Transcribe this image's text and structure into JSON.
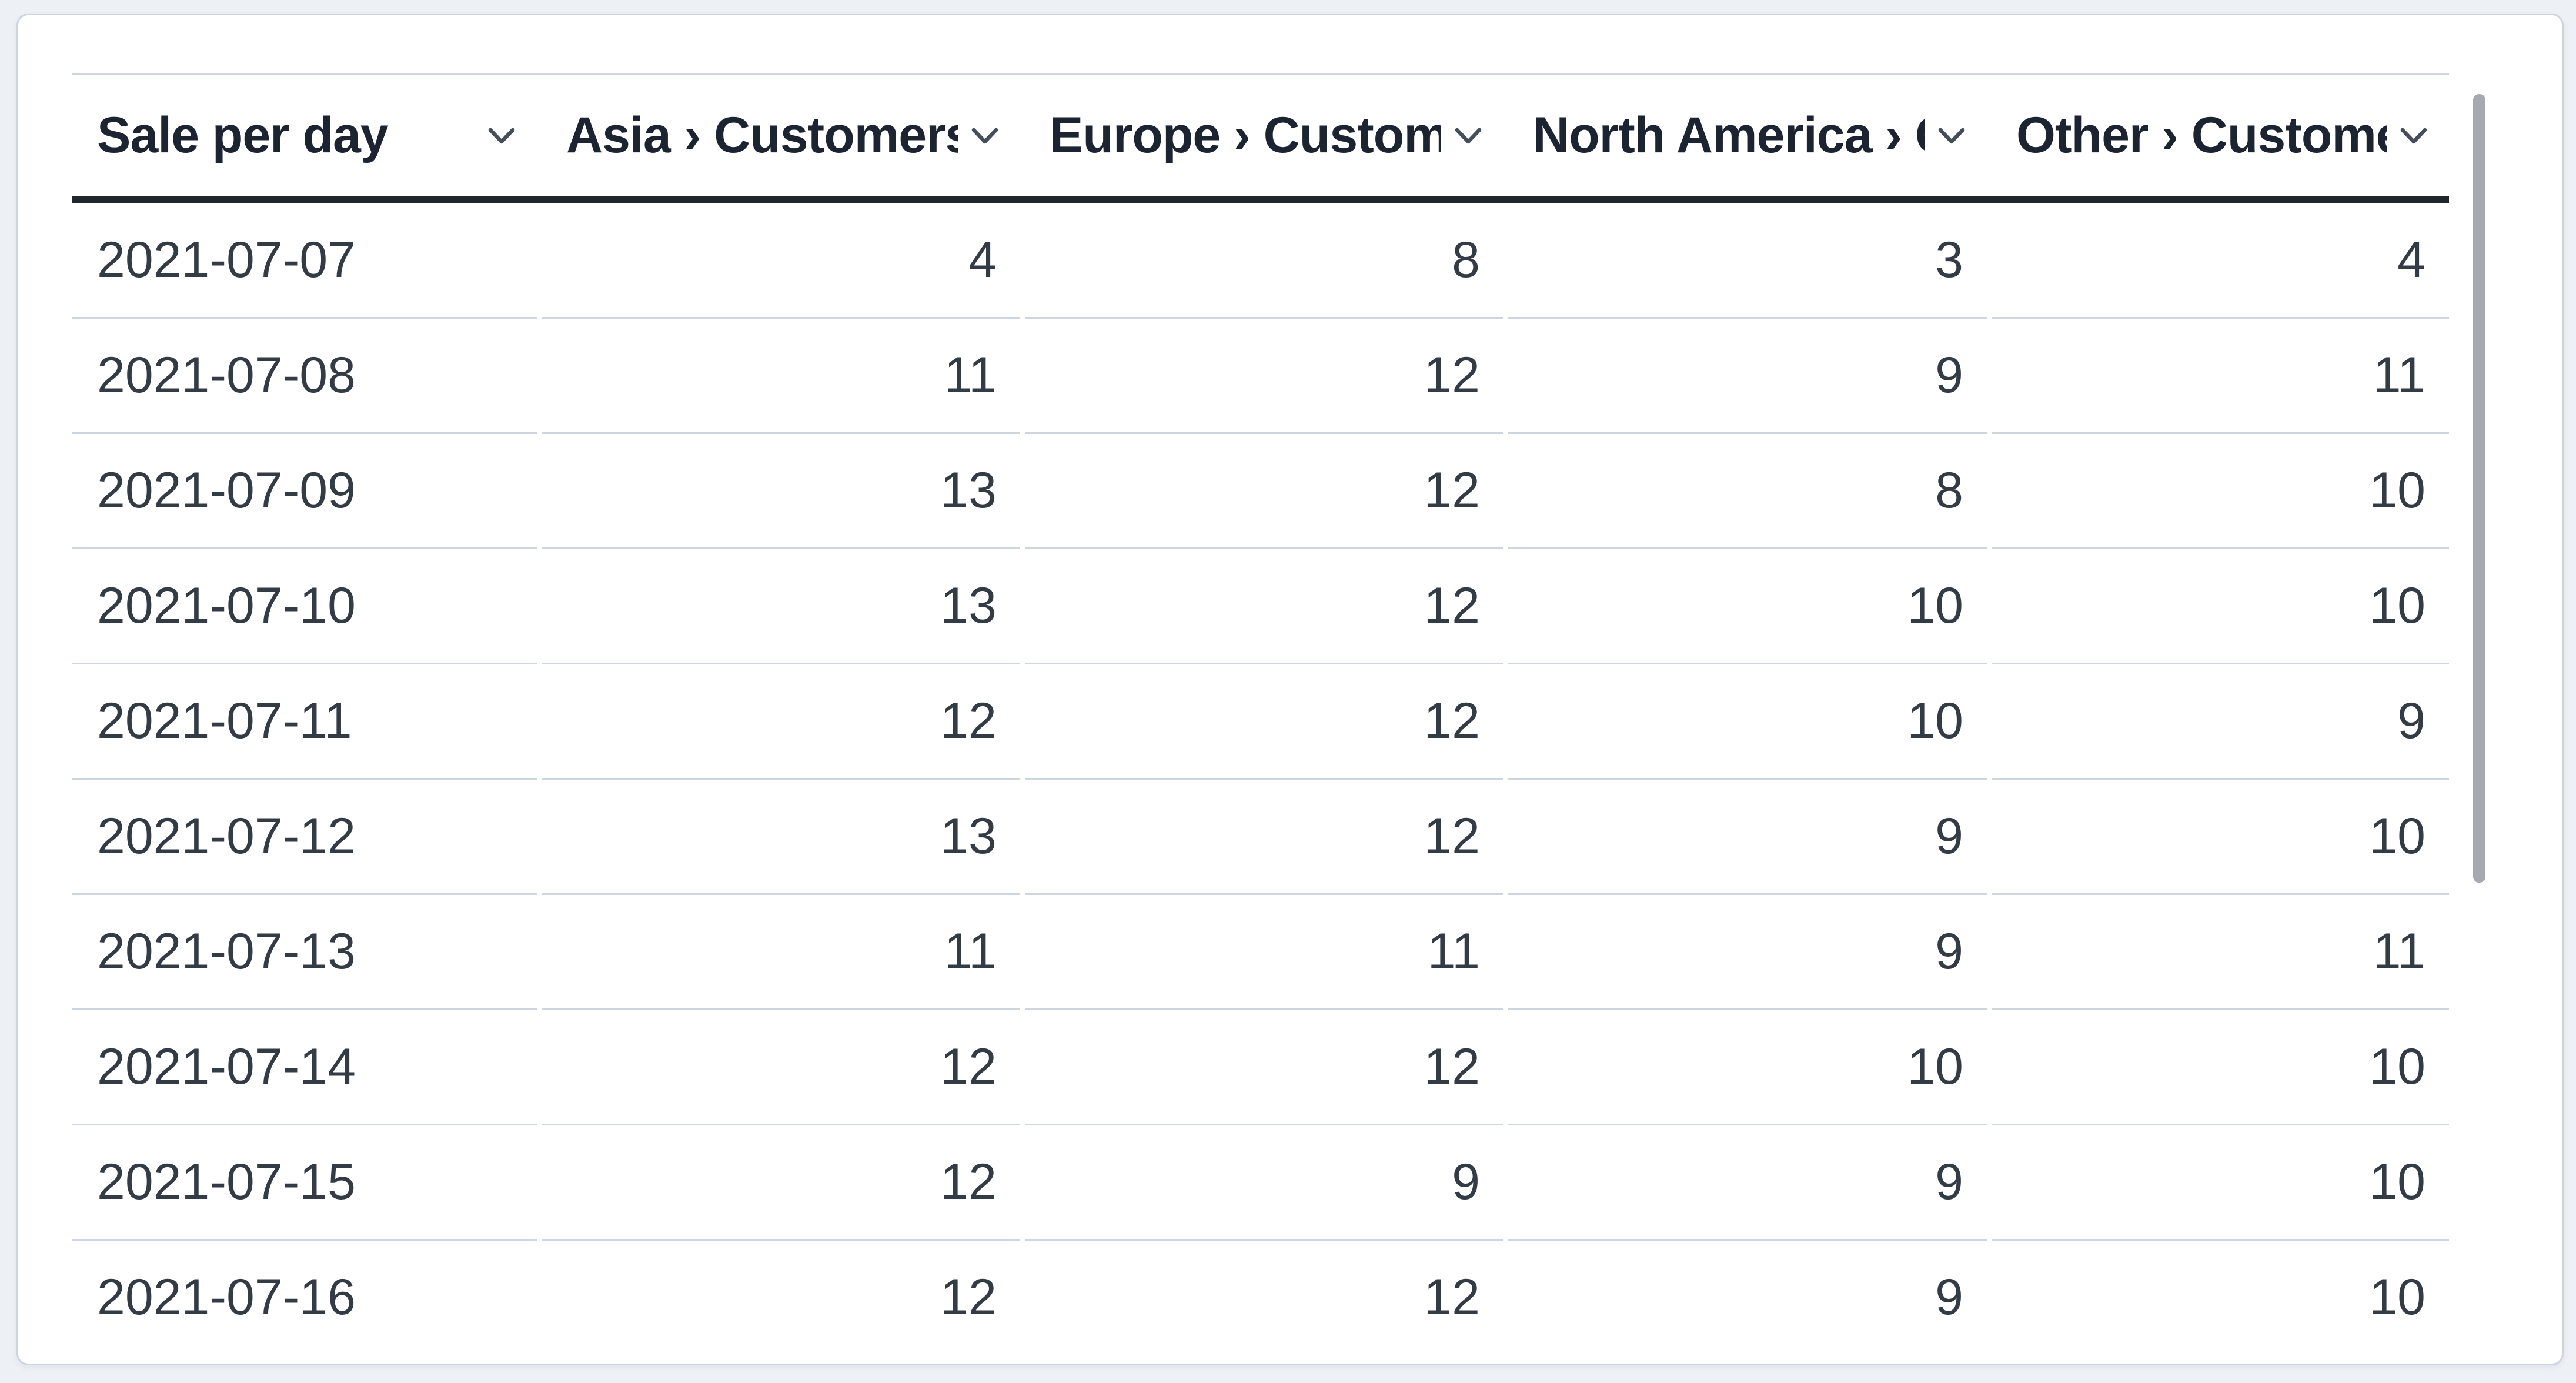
{
  "widget": {
    "type": "table-visualization"
  },
  "table": {
    "columns": [
      {
        "label": "Sale per day",
        "align": "left"
      },
      {
        "label": "Asia › Customers",
        "align": "right"
      },
      {
        "label": "Europe › Customers",
        "align": "right"
      },
      {
        "label": "North America › Customers",
        "align": "right"
      },
      {
        "label": "Other › Customers",
        "align": "right"
      }
    ],
    "rows": [
      [
        "2021-07-07",
        "4",
        "8",
        "3",
        "4"
      ],
      [
        "2021-07-08",
        "11",
        "12",
        "9",
        "11"
      ],
      [
        "2021-07-09",
        "13",
        "12",
        "8",
        "10"
      ],
      [
        "2021-07-10",
        "13",
        "12",
        "10",
        "10"
      ],
      [
        "2021-07-11",
        "12",
        "12",
        "10",
        "9"
      ],
      [
        "2021-07-12",
        "13",
        "12",
        "9",
        "10"
      ],
      [
        "2021-07-13",
        "11",
        "11",
        "9",
        "11"
      ],
      [
        "2021-07-14",
        "12",
        "12",
        "10",
        "10"
      ],
      [
        "2021-07-15",
        "12",
        "9",
        "9",
        "10"
      ],
      [
        "2021-07-16",
        "12",
        "12",
        "9",
        "10"
      ]
    ]
  },
  "chart_data": {
    "type": "table",
    "title": "Sale per day",
    "categories": [
      "2021-07-07",
      "2021-07-08",
      "2021-07-09",
      "2021-07-10",
      "2021-07-11",
      "2021-07-12",
      "2021-07-13",
      "2021-07-14",
      "2021-07-15",
      "2021-07-16"
    ],
    "series": [
      {
        "name": "Asia › Customers",
        "values": [
          4,
          11,
          13,
          13,
          12,
          13,
          11,
          12,
          12,
          12
        ]
      },
      {
        "name": "Europe › Customers",
        "values": [
          8,
          12,
          12,
          12,
          12,
          12,
          11,
          12,
          9,
          12
        ]
      },
      {
        "name": "North America › Customers",
        "values": [
          3,
          9,
          8,
          10,
          10,
          9,
          9,
          10,
          9,
          9
        ]
      },
      {
        "name": "Other › Customers",
        "values": [
          4,
          11,
          10,
          10,
          9,
          10,
          11,
          10,
          10,
          10
        ]
      }
    ]
  },
  "icons": {
    "sort_chevron": "chevron-down"
  },
  "colors": {
    "page_background": "#edf0f5",
    "card_background": "#ffffff",
    "card_border": "#cbd5e1",
    "header_text": "#1b2430",
    "body_text": "#333b45",
    "header_underline": "#22262d",
    "row_separator": "#cdd6e0",
    "chevron": "#454f5b",
    "scrollbar_thumb": "#a6aab0"
  },
  "scrollbar": {
    "visible": true,
    "orientation": "vertical"
  }
}
